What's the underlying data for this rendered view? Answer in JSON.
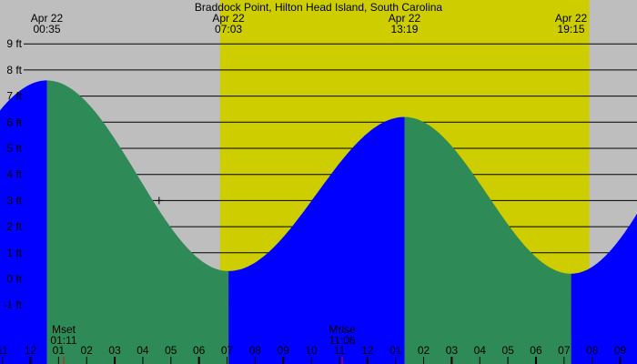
{
  "chart_data": {
    "type": "area",
    "title": "Braddock Point, Hilton Head Island, South Carolina",
    "unit": "ft",
    "ylim": [
      -1,
      9
    ],
    "y_ticks": [
      {
        "value": 9,
        "label": "9 ft"
      },
      {
        "value": 8,
        "label": "8 ft"
      },
      {
        "value": 7,
        "label": "7 ft"
      },
      {
        "value": 6,
        "label": "6 ft"
      },
      {
        "value": 5,
        "label": "5 ft"
      },
      {
        "value": 4,
        "label": "4 ft"
      },
      {
        "value": 3,
        "label": "3 ft"
      },
      {
        "value": 2,
        "label": "2 ft"
      },
      {
        "value": 1,
        "label": "1 ft"
      },
      {
        "value": 0,
        "label": "0 ft"
      },
      {
        "value": -1,
        "label": "-1 ft"
      }
    ],
    "grid": true,
    "extremes": [
      {
        "date": "Apr 22",
        "time": "00:35",
        "hour": 0.583,
        "height": 7.6,
        "type": "high"
      },
      {
        "date": "Apr 22",
        "time": "07:03",
        "hour": 7.05,
        "height": 0.3,
        "type": "low"
      },
      {
        "date": "Apr 22",
        "time": "13:19",
        "hour": 13.317,
        "height": 6.2,
        "type": "high"
      },
      {
        "date": "Apr 22",
        "time": "19:15",
        "hour": 19.25,
        "height": 0.2,
        "type": "low"
      }
    ],
    "daylight": {
      "start_hour": 6.75,
      "end_hour": 19.9
    },
    "hour_labels": [
      {
        "hour": -1,
        "label": "11"
      },
      {
        "hour": 0,
        "label": "12"
      },
      {
        "hour": 1,
        "label": "01"
      },
      {
        "hour": 2,
        "label": "02"
      },
      {
        "hour": 3,
        "label": "03"
      },
      {
        "hour": 4,
        "label": "04"
      },
      {
        "hour": 5,
        "label": "05"
      },
      {
        "hour": 6,
        "label": "06"
      },
      {
        "hour": 7,
        "label": "07"
      },
      {
        "hour": 8,
        "label": "08"
      },
      {
        "hour": 9,
        "label": "09"
      },
      {
        "hour": 10,
        "label": "10"
      },
      {
        "hour": 11,
        "label": "11"
      },
      {
        "hour": 12,
        "label": "12"
      },
      {
        "hour": 13,
        "label": "01"
      },
      {
        "hour": 14,
        "label": "02"
      },
      {
        "hour": 15,
        "label": "03"
      },
      {
        "hour": 16,
        "label": "04"
      },
      {
        "hour": 17,
        "label": "05"
      },
      {
        "hour": 18,
        "label": "06"
      },
      {
        "hour": 19,
        "label": "07"
      },
      {
        "hour": 20,
        "label": "08"
      },
      {
        "hour": 21,
        "label": "09"
      }
    ],
    "moon_events": [
      {
        "label": "Mset",
        "time": "01:11",
        "hour": 1.183
      },
      {
        "label": "Mrise",
        "time": "11:06",
        "hour": 11.1
      }
    ],
    "current_marker": {
      "hour": 4.58,
      "height": 3.0
    },
    "colors": {
      "night": "#bebebe",
      "day": "#cdcd00",
      "rising": "#0000ff",
      "falling": "#2e8b57",
      "grid": "#000000",
      "moon_tick": "#ff0000"
    }
  }
}
